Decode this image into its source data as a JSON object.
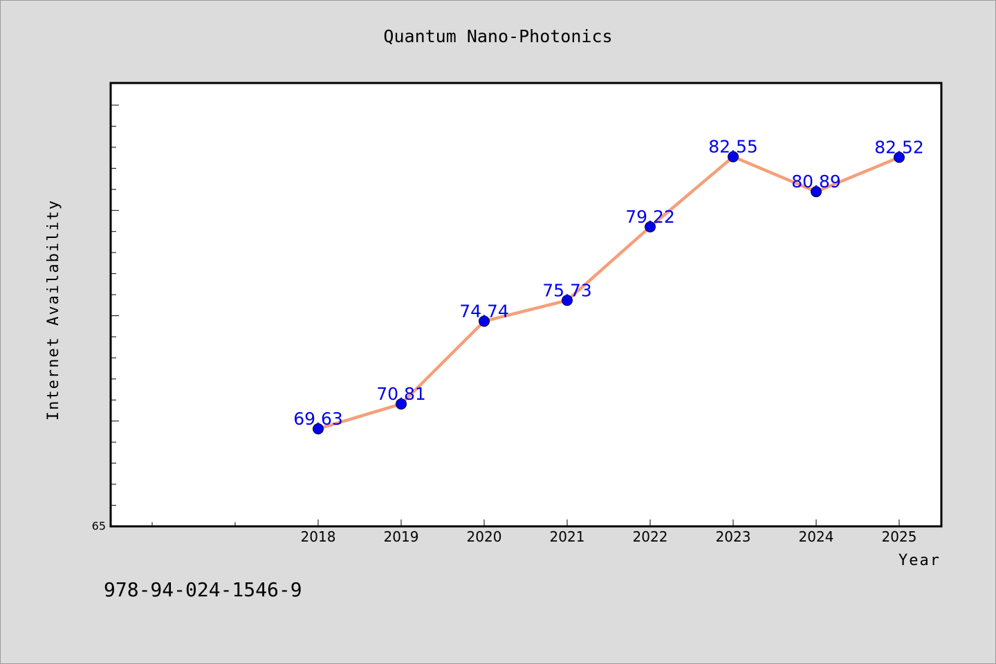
{
  "footnote": "978-94-024-1546-9",
  "colors": {
    "background": "#dcdcdc",
    "plot_background": "#ffffff",
    "line": "#f4a07a",
    "marker": "#0000ee",
    "data_label": "#0000ee"
  },
  "chart_data": {
    "type": "line",
    "title": "Quantum Nano-Photonics",
    "xlabel": "Year",
    "ylabel": "Internet Availability",
    "x": [
      2018,
      2019,
      2020,
      2021,
      2022,
      2023,
      2024,
      2025
    ],
    "values": [
      69.63,
      70.81,
      74.74,
      75.73,
      79.22,
      82.55,
      80.89,
      82.52
    ],
    "data_labels": [
      "69.63",
      "70.81",
      "74.74",
      "75.73",
      "79.22",
      "82.55",
      "80.89",
      "82.52"
    ],
    "xlim": [
      2016,
      2025.5
    ],
    "ylim": [
      65,
      85
    ],
    "ytick_label_shown": "65",
    "grid": false,
    "legend": "none"
  }
}
